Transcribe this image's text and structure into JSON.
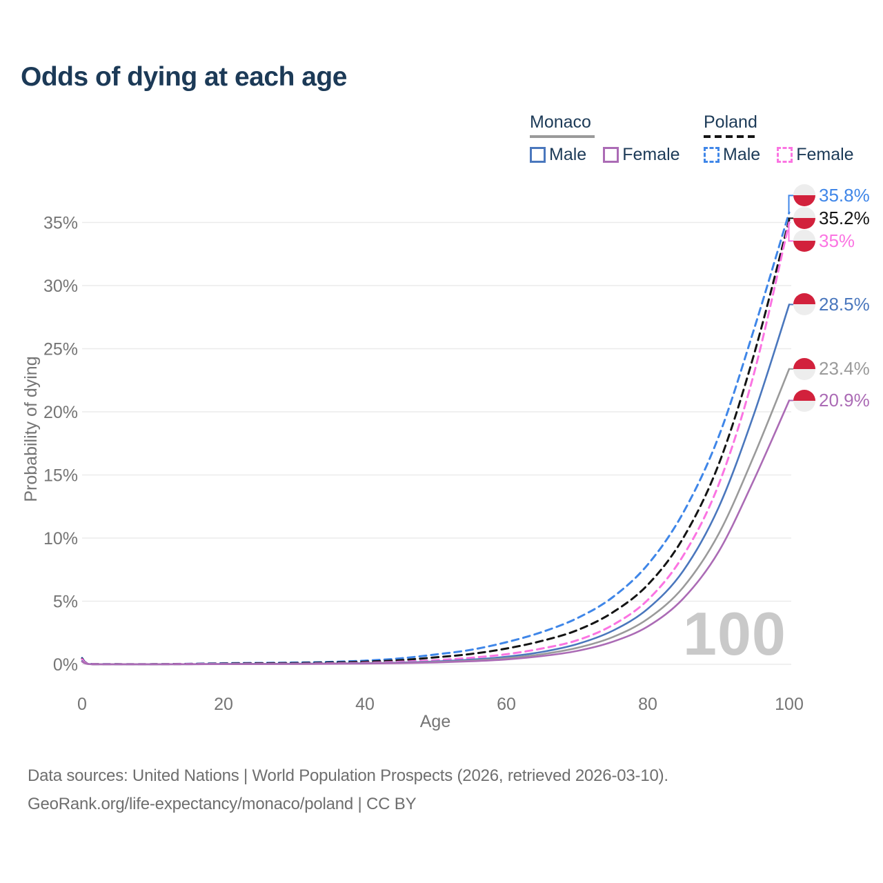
{
  "title": "Odds of dying at each age",
  "legend": {
    "monaco": {
      "label": "Monaco",
      "male": "Male",
      "female": "Female"
    },
    "poland": {
      "label": "Poland",
      "male": "Male",
      "female": "Female"
    }
  },
  "chart_data": {
    "type": "line",
    "title": "Odds of dying at each age",
    "xlabel": "Age",
    "ylabel": "Probability of dying",
    "xlim": [
      0,
      100
    ],
    "ylim": [
      0,
      37
    ],
    "x_ticks": [
      0,
      20,
      40,
      60,
      80,
      100
    ],
    "y_ticks": [
      "0%",
      "5%",
      "10%",
      "15%",
      "20%",
      "25%",
      "30%",
      "35%"
    ],
    "y_tick_values": [
      0,
      5,
      10,
      15,
      20,
      25,
      30,
      35
    ],
    "grid": true,
    "legend_position": "top-right",
    "age_marker": "100",
    "ages": [
      0,
      1,
      5,
      10,
      15,
      20,
      25,
      30,
      35,
      40,
      45,
      50,
      55,
      60,
      65,
      70,
      75,
      80,
      85,
      90,
      95,
      100
    ],
    "series": [
      {
        "name": "Poland Male",
        "color": "#3f86e8",
        "dash": true,
        "values": [
          0.5,
          0.04,
          0.01,
          0.01,
          0.04,
          0.09,
          0.11,
          0.14,
          0.19,
          0.29,
          0.47,
          0.78,
          1.15,
          1.75,
          2.55,
          3.65,
          5.3,
          7.9,
          12.0,
          18.0,
          26.5,
          35.8
        ]
      },
      {
        "name": "Poland",
        "color": "#141414",
        "dash": true,
        "values": [
          0.45,
          0.035,
          0.009,
          0.009,
          0.03,
          0.06,
          0.08,
          0.1,
          0.14,
          0.21,
          0.33,
          0.55,
          0.82,
          1.25,
          1.85,
          2.7,
          4.1,
          6.3,
          10.0,
          15.8,
          24.5,
          35.2
        ]
      },
      {
        "name": "Poland Female",
        "color": "#fb74e2",
        "dash": true,
        "values": [
          0.4,
          0.03,
          0.008,
          0.008,
          0.02,
          0.035,
          0.04,
          0.05,
          0.08,
          0.12,
          0.2,
          0.33,
          0.52,
          0.8,
          1.25,
          1.9,
          3.1,
          5.1,
          8.6,
          14.2,
          23.0,
          35.0
        ]
      },
      {
        "name": "Monaco Male",
        "color": "#4a77bd",
        "dash": false,
        "values": [
          0.26,
          0.02,
          0.006,
          0.006,
          0.013,
          0.027,
          0.034,
          0.043,
          0.06,
          0.09,
          0.14,
          0.23,
          0.37,
          0.6,
          0.98,
          1.6,
          2.65,
          4.4,
          7.4,
          12.4,
          19.8,
          28.5
        ]
      },
      {
        "name": "Monaco",
        "color": "#9a9a9a",
        "dash": false,
        "values": [
          0.23,
          0.018,
          0.005,
          0.005,
          0.011,
          0.022,
          0.028,
          0.035,
          0.049,
          0.073,
          0.115,
          0.185,
          0.3,
          0.49,
          0.8,
          1.3,
          2.15,
          3.6,
          6.1,
          10.3,
          16.5,
          23.4
        ]
      },
      {
        "name": "Monaco Female",
        "color": "#ab6bb5",
        "dash": false,
        "values": [
          0.21,
          0.016,
          0.004,
          0.004,
          0.009,
          0.017,
          0.022,
          0.028,
          0.039,
          0.058,
          0.092,
          0.15,
          0.24,
          0.39,
          0.65,
          1.06,
          1.78,
          3.0,
          5.2,
          8.9,
          14.6,
          20.9
        ]
      }
    ],
    "end_labels": [
      {
        "label": "35.8%",
        "value": 35.8,
        "series": "Poland Male",
        "flag": "poland",
        "color": "#3f86e8"
      },
      {
        "label": "35.2%",
        "value": 35.2,
        "series": "Poland",
        "flag": "poland",
        "color": "#141414"
      },
      {
        "label": "35%",
        "value": 35.0,
        "series": "Poland Female",
        "flag": "poland",
        "color": "#fb74e2"
      },
      {
        "label": "28.5%",
        "value": 28.5,
        "series": "Monaco Male",
        "flag": "monaco",
        "color": "#4a77bd"
      },
      {
        "label": "23.4%",
        "value": 23.4,
        "series": "Monaco",
        "flag": "monaco",
        "color": "#9a9a9a"
      },
      {
        "label": "20.9%",
        "value": 20.9,
        "series": "Monaco Female",
        "flag": "monaco",
        "color": "#ab6bb5"
      }
    ],
    "flags": {
      "poland": [
        "#ededed",
        "#d2213c"
      ],
      "monaco": [
        "#d2213c",
        "#ededed"
      ]
    }
  },
  "colors": {
    "title_text": "#1c3a57",
    "axis_text": "#757575",
    "grid": "#ebebeb",
    "watermark": "#c9c9c9"
  },
  "footer": {
    "line1": "Data sources: United Nations | World Population Prospects (2026, retrieved 2026-03-10).",
    "line2": "GeoRank.org/life-expectancy/monaco/poland | CC BY"
  }
}
